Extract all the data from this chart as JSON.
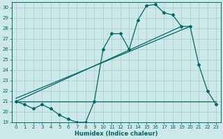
{
  "xlabel": "Humidex (Indice chaleur)",
  "bg_color": "#cce8e8",
  "grid_color": "#aacccc",
  "line_color": "#006666",
  "xlim": [
    -0.5,
    23.5
  ],
  "ylim": [
    19,
    30.5
  ],
  "yticks": [
    19,
    20,
    21,
    22,
    23,
    24,
    25,
    26,
    27,
    28,
    29,
    30
  ],
  "xticks": [
    0,
    1,
    2,
    3,
    4,
    5,
    6,
    7,
    8,
    9,
    10,
    11,
    12,
    13,
    14,
    15,
    16,
    17,
    18,
    19,
    20,
    21,
    22,
    23
  ],
  "data_main": {
    "x": [
      0,
      1,
      2,
      3,
      4,
      5,
      6,
      7,
      8,
      9,
      10,
      11,
      12,
      13,
      14,
      15,
      16,
      17,
      18,
      19,
      20,
      21,
      22,
      23
    ],
    "y": [
      21.0,
      20.7,
      20.3,
      20.7,
      20.3,
      19.7,
      19.3,
      19.0,
      19.0,
      21.0,
      26.0,
      27.5,
      27.5,
      26.0,
      28.8,
      30.2,
      30.3,
      29.5,
      29.3,
      28.2,
      28.2,
      24.5,
      22.0,
      20.7
    ]
  },
  "trend_line1": {
    "x": [
      0,
      19
    ],
    "y": [
      21.0,
      28.2
    ]
  },
  "trend_line2": {
    "x": [
      0,
      20
    ],
    "y": [
      21.3,
      28.2
    ]
  },
  "hline_y": 21.0,
  "hline_x": [
    0,
    23
  ]
}
